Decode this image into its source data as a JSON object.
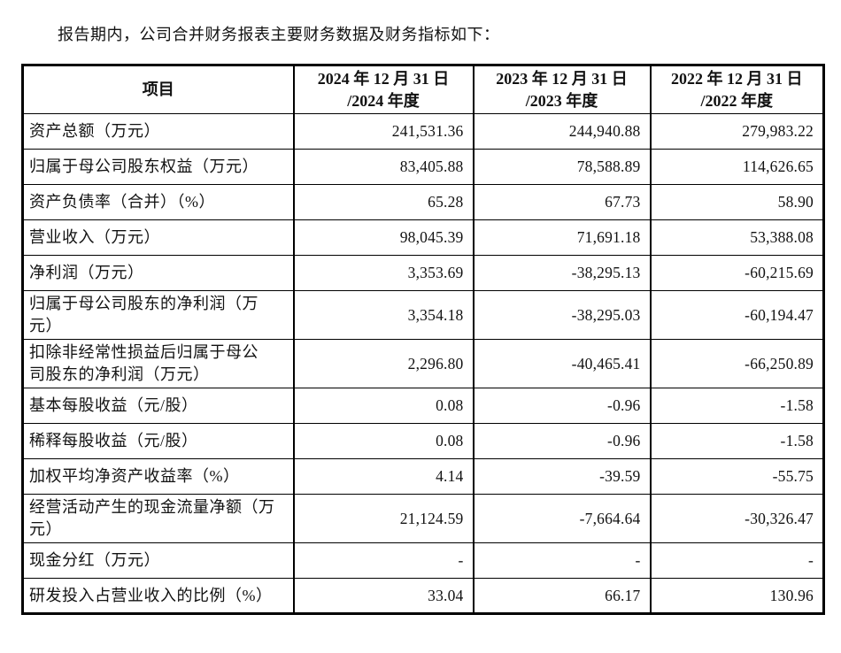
{
  "intro": "报告期内，公司合并财务报表主要财务数据及财务指标如下：",
  "table": {
    "headers": [
      "项目",
      "2024 年 12 月 31 日\n/2024 年度",
      "2023 年 12 月 31 日\n/2023 年度",
      "2022 年 12 月 31 日\n/2022 年度"
    ],
    "rows": [
      {
        "label": "资产总额（万元）",
        "values": [
          "241,531.36",
          "244,940.88",
          "279,983.22"
        ]
      },
      {
        "label": "归属于母公司股东权益（万元）",
        "values": [
          "83,405.88",
          "78,588.89",
          "114,626.65"
        ]
      },
      {
        "label": "资产负债率（合并）（%）",
        "values": [
          "65.28",
          "67.73",
          "58.90"
        ]
      },
      {
        "label": "营业收入（万元）",
        "values": [
          "98,045.39",
          "71,691.18",
          "53,388.08"
        ]
      },
      {
        "label": "净利润（万元）",
        "values": [
          "3,353.69",
          "-38,295.13",
          "-60,215.69"
        ]
      },
      {
        "label": "归属于母公司股东的净利润（万\n元）",
        "values": [
          "3,354.18",
          "-38,295.03",
          "-60,194.47"
        ]
      },
      {
        "label": "扣除非经常性损益后归属于母公\n司股东的净利润（万元）",
        "values": [
          "2,296.80",
          "-40,465.41",
          "-66,250.89"
        ]
      },
      {
        "label": "基本每股收益（元/股）",
        "values": [
          "0.08",
          "-0.96",
          "-1.58"
        ]
      },
      {
        "label": "稀释每股收益（元/股）",
        "values": [
          "0.08",
          "-0.96",
          "-1.58"
        ]
      },
      {
        "label": "加权平均净资产收益率（%）",
        "values": [
          "4.14",
          "-39.59",
          "-55.75"
        ]
      },
      {
        "label": "经营活动产生的现金流量净额（万\n元）",
        "values": [
          "21,124.59",
          "-7,664.64",
          "-30,326.47"
        ]
      },
      {
        "label": "现金分红（万元）",
        "values": [
          "-",
          "-",
          "-"
        ]
      },
      {
        "label": "研发投入占营业收入的比例（%）",
        "values": [
          "33.04",
          "66.17",
          "130.96"
        ]
      }
    ]
  }
}
